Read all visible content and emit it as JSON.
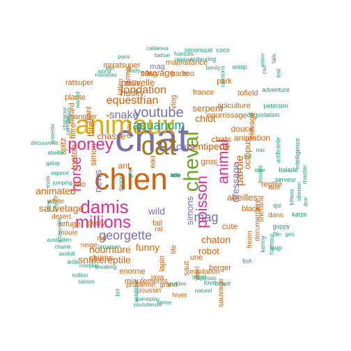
{
  "cloud": {
    "words": [
      {
        "text": "chat",
        "color": "#7570b3"
      },
      {
        "text": "chien",
        "color": "#d95f02"
      },
      {
        "text": "animaux",
        "color": "#e6ab02"
      },
      {
        "text": "cat",
        "color": "#a6761d"
      },
      {
        "text": "cheval",
        "color": "#66a61e"
      },
      {
        "text": "poney",
        "color": "#e7298a"
      },
      {
        "text": "damis",
        "color": "#e7298a"
      },
      {
        "text": "millions",
        "color": "#e7298a"
      },
      {
        "text": "youtube",
        "color": "#7570b3"
      },
      {
        "text": "poisson",
        "color": "#e7298a"
      },
      {
        "text": "animal",
        "color": "#e7298a"
      },
      {
        "text": "horse",
        "color": "#e7298a"
      },
      {
        "text": "georgette",
        "color": "#7570b3"
      },
      {
        "text": "snake",
        "color": "#7570b3"
      },
      {
        "text": "aquarium",
        "color": "#1b9e77"
      },
      {
        "text": "fondation",
        "color": "#d95f02"
      },
      {
        "text": "equestrian",
        "color": "#d95f02"
      },
      {
        "text": "nourriture",
        "color": "#d95f02"
      },
      {
        "text": "snakereptile",
        "color": "#d95f02"
      },
      {
        "text": "dressage",
        "color": "#7570b3"
      },
      {
        "text": "parole",
        "color": "#d95f02"
      },
      {
        "text": "cats",
        "color": "#7570b3"
      },
      {
        "text": "mag",
        "color": "#7570b3"
      },
      {
        "text": "sauvetage",
        "color": "#d95f02"
      },
      {
        "text": "animated",
        "color": "#d95f02"
      },
      {
        "text": "funny",
        "color": "#d95f02"
      },
      {
        "text": "simons",
        "color": "#7570b3"
      },
      {
        "text": "chaton",
        "color": "#d95f02"
      },
      {
        "text": "chiot",
        "color": "#d95f02"
      },
      {
        "text": "news",
        "color": "#7570b3"
      },
      {
        "text": "wild",
        "color": "#7570b3"
      },
      {
        "text": "centipede",
        "color": "#d95f02"
      },
      {
        "text": "abeilles",
        "color": "#d95f02"
      },
      {
        "text": "nouvelle",
        "color": "#d95f02"
      },
      {
        "text": "sauvage",
        "color": "#d95f02"
      },
      {
        "text": "husky",
        "color": "#d95f02"
      },
      {
        "text": "chasse",
        "color": "#d95f02"
      },
      {
        "text": "serpent",
        "color": "#d95f02"
      },
      {
        "text": "robot",
        "color": "#d95f02"
      },
      {
        "text": "octopus",
        "color": "#d95f02"
      },
      {
        "text": "tonton",
        "color": "#d95f02"
      },
      {
        "text": "pony",
        "color": "#d95f02"
      },
      {
        "text": "spitz",
        "color": "#d95f02"
      },
      {
        "text": "ant",
        "color": "#d95f02"
      },
      {
        "text": "bite",
        "color": "#d95f02"
      },
      {
        "text": "animation",
        "color": "#d95f02"
      },
      {
        "text": "douce",
        "color": "#d95f02"
      },
      {
        "text": "cute",
        "color": "#d95f02"
      },
      {
        "text": "chats",
        "color": "#d95f02"
      },
      {
        "text": "gros",
        "color": "#d95f02"
      },
      {
        "text": "filtre",
        "color": "#d95f02"
      },
      {
        "text": "chiens",
        "color": "#d95f02"
      },
      {
        "text": "enorme",
        "color": "#d95f02"
      },
      {
        "text": "nourrissage",
        "color": "#d95f02"
      },
      {
        "text": "elevage",
        "color": "#d95f02"
      },
      {
        "text": "apiculture",
        "color": "#d95f02"
      },
      {
        "text": "black",
        "color": "#d95f02"
      },
      {
        "text": "miaulements",
        "color": "#d95f02"
      },
      {
        "text": "sanglier",
        "color": "#d95f02"
      },
      {
        "text": "mrratsuper",
        "color": "#d95f02"
      },
      {
        "text": "arma",
        "color": "#d95f02"
      },
      {
        "text": "simon",
        "color": "#d95f02"
      },
      {
        "text": "lezard",
        "color": "#d95f02"
      },
      {
        "text": "giant",
        "color": "#d95f02"
      },
      {
        "text": "vlog",
        "color": "#d95f02"
      },
      {
        "text": "mag",
        "color": "#7570b3"
      },
      {
        "text": "maltraitance",
        "color": "#d95f02"
      },
      {
        "text": "sting",
        "color": "#d95f02"
      },
      {
        "text": "parle",
        "color": "#d95f02"
      },
      {
        "text": "zoo",
        "color": "#d95f02"
      },
      {
        "text": "plante",
        "color": "#d95f02"
      },
      {
        "text": "colis",
        "color": "#d95f02"
      },
      {
        "text": "france",
        "color": "#d95f02"
      },
      {
        "text": "tofield",
        "color": "#d95f02"
      },
      {
        "text": "park",
        "color": "#d95f02"
      },
      {
        "text": "ratsuper",
        "color": "#d95f02"
      },
      {
        "text": "kitten",
        "color": "#d95f02"
      },
      {
        "text": "deau",
        "color": "#d95f02"
      },
      {
        "text": "eau",
        "color": "#d95f02"
      },
      {
        "text": "fail",
        "color": "#d95f02"
      },
      {
        "text": "rat",
        "color": "#d95f02"
      },
      {
        "text": "une",
        "color": "#d95f02"
      },
      {
        "text": "saut",
        "color": "#d95f02"
      },
      {
        "text": "berger",
        "color": "#d95f02"
      },
      {
        "text": "lapin",
        "color": "#d95f02"
      },
      {
        "text": "sauvage",
        "color": "#d95f02"
      },
      {
        "text": "reptile",
        "color": "#d95f02"
      },
      {
        "text": "documentaire",
        "color": "#d95f02"
      },
      {
        "text": "shetland",
        "color": "#d95f02"
      },
      {
        "text": "freion",
        "color": "#d95f02"
      },
      {
        "text": "aux",
        "color": "#d95f02"
      },
      {
        "text": "dans",
        "color": "#d95f02"
      },
      {
        "text": "tuto",
        "color": "#d95f02"
      },
      {
        "text": "refuge",
        "color": "#d95f02"
      },
      {
        "text": "moule",
        "color": "#d95f02"
      },
      {
        "text": "nid",
        "color": "#d95f02"
      },
      {
        "text": "neige",
        "color": "#d95f02"
      },
      {
        "text": "poussin",
        "color": "#d95f02"
      },
      {
        "text": "grand",
        "color": "#d95f02"
      },
      {
        "text": "problème",
        "color": "#d95f02"
      },
      {
        "text": "java",
        "color": "#d95f02"
      },
      {
        "text": "equitation",
        "color": "#d95f02"
      },
      {
        "text": "white",
        "color": "#d95f02"
      },
      {
        "text": "desert",
        "color": "#d95f02"
      },
      {
        "text": "hiver",
        "color": "#d95f02"
      },
      {
        "text": "duel",
        "color": "#d95f02"
      },
      {
        "text": "life",
        "color": "#d95f02"
      },
      {
        "text": "love",
        "color": "#1b9e77"
      },
      {
        "text": "brave",
        "color": "#1b9e77"
      },
      {
        "text": "kenny",
        "color": "#1b9e77"
      },
      {
        "text": "fish",
        "color": "#1b9e77"
      },
      {
        "text": "humour",
        "color": "#1b9e77"
      },
      {
        "text": "loup",
        "color": "#1b9e77"
      },
      {
        "text": "guppy",
        "color": "#1b9e77"
      },
      {
        "text": "qui",
        "color": "#1b9e77"
      },
      {
        "text": "katze",
        "color": "#1b9e77"
      },
      {
        "text": "serveur",
        "color": "#1b9e77"
      },
      {
        "text": "balade",
        "color": "#1b9e77"
      },
      {
        "text": "master",
        "color": "#1b9e77"
      },
      {
        "text": "artificielle",
        "color": "#1b9e77"
      },
      {
        "text": "intelligence",
        "color": "#1b9e77"
      },
      {
        "text": "dégustation",
        "color": "#1b9e77"
      },
      {
        "text": "peterson",
        "color": "#1b9e77"
      },
      {
        "text": "adventure",
        "color": "#1b9e77"
      },
      {
        "text": "wasp",
        "color": "#1b9e77"
      },
      {
        "text": "coco",
        "color": "#1b9e77"
      },
      {
        "text": "unboxing",
        "color": "#1b9e77"
      },
      {
        "text": "simonscat",
        "color": "#1b9e77"
      },
      {
        "text": "саймона",
        "color": "#1b9e77"
      },
      {
        "text": "battue",
        "color": "#1b9e77"
      },
      {
        "text": "français",
        "color": "#1b9e77"
      },
      {
        "text": "mignon",
        "color": "#1b9e77"
      },
      {
        "text": "paris",
        "color": "#1b9e77"
      },
      {
        "text": "platty",
        "color": "#1b9e77"
      },
      {
        "text": "nouveau",
        "color": "#1b9e77"
      },
      {
        "text": "test",
        "color": "#1b9e77"
      },
      {
        "text": "warrior",
        "color": "#1b9e77"
      },
      {
        "text": "lovers",
        "color": "#1b9e77"
      },
      {
        "text": "character",
        "color": "#1b9e77"
      },
      {
        "text": "crevette",
        "color": "#1b9e77"
      },
      {
        "text": "caresse",
        "color": "#1b9e77"
      },
      {
        "text": "découverte",
        "color": "#1b9e77"
      },
      {
        "text": "abeille",
        "color": "#1b9e77"
      },
      {
        "text": "galop",
        "color": "#1b9e77"
      },
      {
        "text": "mots",
        "color": "#1b9e77"
      },
      {
        "text": "espece",
        "color": "#1b9e77"
      },
      {
        "text": "jumping",
        "color": "#1b9e77"
      },
      {
        "text": "sans",
        "color": "#1b9e77"
      },
      {
        "text": "coyote",
        "color": "#1b9e77"
      },
      {
        "text": "incroyable",
        "color": "#1b9e77"
      },
      {
        "text": "australien",
        "color": "#1b9e77"
      },
      {
        "text": "chaine",
        "color": "#1b9e77"
      },
      {
        "text": "axolotl",
        "color": "#1b9e77"
      },
      {
        "text": "drôle",
        "color": "#1b9e77"
      },
      {
        "text": "roleplay",
        "color": "#1b9e77"
      },
      {
        "text": "breaking",
        "color": "#1b9e77"
      },
      {
        "text": "terrarium",
        "color": "#1b9e77"
      },
      {
        "text": "million",
        "color": "#1b9e77"
      },
      {
        "text": "saison",
        "color": "#1b9e77"
      },
      {
        "text": "bot",
        "color": "#1b9e77"
      },
      {
        "text": "asiatique",
        "color": "#1b9e77"
      },
      {
        "text": "gameplay",
        "color": "#1b9e77"
      },
      {
        "text": "youtubeuse",
        "color": "#1b9e77"
      },
      {
        "text": "ferme",
        "color": "#1b9e77"
      },
      {
        "text": "naturel",
        "color": "#1b9e77"
      },
      {
        "text": "gmod",
        "color": "#1b9e77"
      },
      {
        "text": "goadee",
        "color": "#1b9e77"
      },
      {
        "text": "japonais",
        "color": "#1b9e77"
      },
      {
        "text": "dance",
        "color": "#1b9e77"
      },
      {
        "text": "gta",
        "color": "#1b9e77"
      },
      {
        "text": "kot",
        "color": "#1b9e77"
      },
      {
        "text": "film",
        "color": "#1b9e77"
      },
      {
        "text": "geo",
        "color": "#1b9e77"
      },
      {
        "text": "idée",
        "color": "#1b9e77"
      },
      {
        "text": "nac",
        "color": "#1b9e77"
      },
      {
        "text": "boudra",
        "color": "#1b9e77"
      },
      {
        "text": "trail",
        "color": "#1b9e77"
      },
      {
        "text": "cso",
        "color": "#1b9e77"
      },
      {
        "text": "fails",
        "color": "#1b9e77"
      },
      {
        "text": "video",
        "color": "#1b9e77"
      },
      {
        "text": "cartoons",
        "color": "#1b9e77"
      },
      {
        "text": "kittens",
        "color": "#1b9e77"
      },
      {
        "text": "siberien",
        "color": "#1b9e77"
      },
      {
        "text": "âne",
        "color": "#1b9e77"
      },
      {
        "text": "family",
        "color": "#1b9e77"
      },
      {
        "text": "worst",
        "color": "#1b9e77"
      },
      {
        "text": "lolly",
        "color": "#1b9e77"
      },
      {
        "text": "ame",
        "color": "#1b9e77"
      },
      {
        "text": "ape",
        "color": "#1b9e77"
      }
    ]
  }
}
